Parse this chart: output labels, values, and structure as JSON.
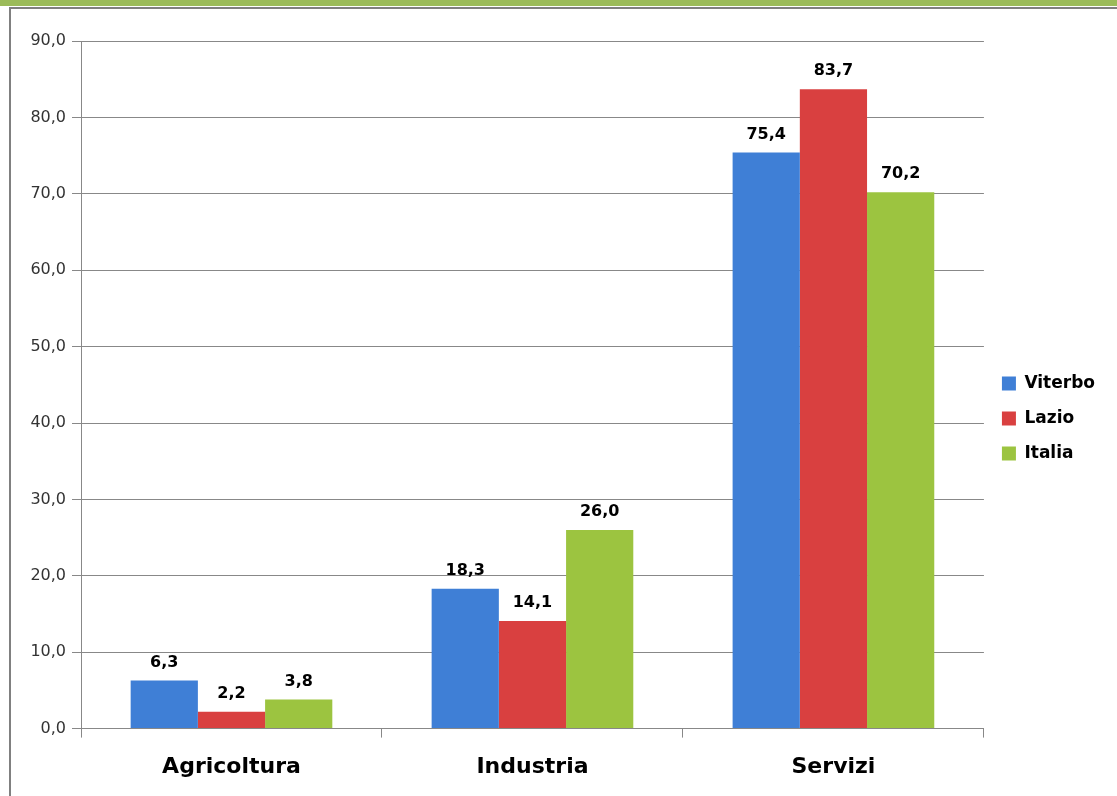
{
  "chart_data": {
    "type": "bar",
    "categories": [
      "Agricoltura",
      "Industria",
      "Servizi"
    ],
    "series": [
      {
        "name": "Viterbo",
        "color": "#3f7fd6",
        "values": [
          6.3,
          18.3,
          75.4
        ],
        "value_labels": [
          "6,3",
          "18,3",
          "75,4"
        ]
      },
      {
        "name": "Lazio",
        "color": "#d94040",
        "values": [
          2.2,
          14.1,
          83.7
        ],
        "value_labels": [
          "2,2",
          "14,1",
          "83,7"
        ]
      },
      {
        "name": "Italia",
        "color": "#9cc440",
        "values": [
          3.8,
          26.0,
          70.2
        ],
        "value_labels": [
          "3,8",
          "26,0",
          "70,2"
        ]
      }
    ],
    "ylim": [
      0,
      90
    ],
    "yticks": [
      {
        "value": 0,
        "label": "0,0"
      },
      {
        "value": 10,
        "label": "10,0"
      },
      {
        "value": 20,
        "label": "20,0"
      },
      {
        "value": 30,
        "label": "30,0"
      },
      {
        "value": 40,
        "label": "40,0"
      },
      {
        "value": 50,
        "label": "50,0"
      },
      {
        "value": 60,
        "label": "60,0"
      },
      {
        "value": 70,
        "label": "70,0"
      },
      {
        "value": 80,
        "label": "80,0"
      },
      {
        "value": 90,
        "label": "90,0"
      }
    ],
    "grid": "y",
    "legend": "right"
  }
}
